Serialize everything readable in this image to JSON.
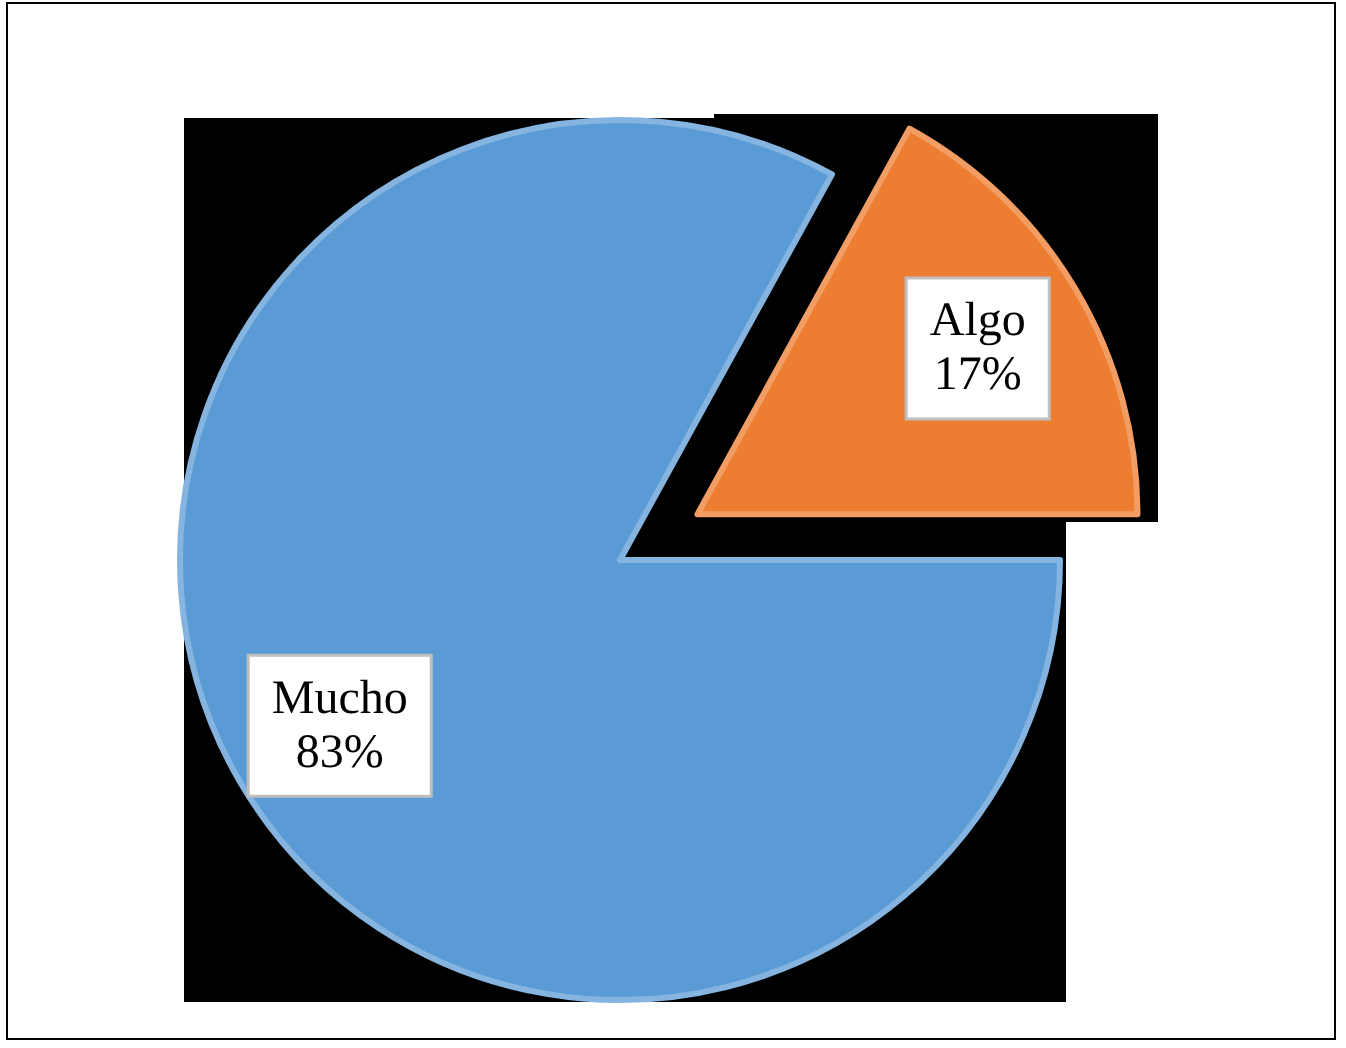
{
  "chart_data": {
    "type": "pie",
    "categories": [
      "Mucho",
      "Algo"
    ],
    "values": [
      83,
      17
    ],
    "colors": [
      "#5b9bd5",
      "#ed7d31"
    ],
    "value_labels": [
      "83%",
      "17%"
    ]
  }
}
